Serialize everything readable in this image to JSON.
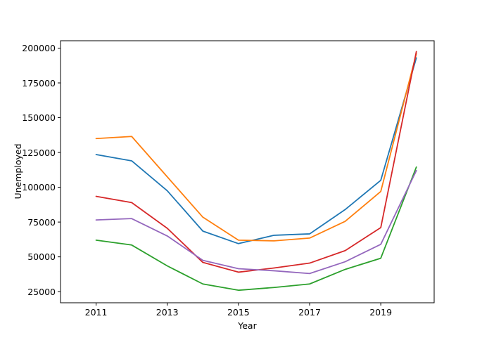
{
  "chart_data": {
    "type": "line",
    "title": "",
    "xlabel": "Year",
    "ylabel": "Unemployed",
    "x": [
      2011,
      2012,
      2013,
      2014,
      2015,
      2016,
      2017,
      2018,
      2019,
      2020
    ],
    "series": [
      {
        "name": "series-blue",
        "color": "#1f77b4",
        "values": [
          123500,
          119000,
          97500,
          68500,
          59500,
          65500,
          66500,
          84000,
          105000,
          193000
        ]
      },
      {
        "name": "series-orange",
        "color": "#ff7f0e",
        "values": [
          135000,
          136500,
          107500,
          78500,
          62000,
          61500,
          63500,
          75500,
          97000,
          196000
        ]
      },
      {
        "name": "series-green",
        "color": "#2ca02c",
        "values": [
          62000,
          58500,
          43500,
          30500,
          26000,
          28000,
          30500,
          41000,
          49000,
          114500
        ]
      },
      {
        "name": "series-red",
        "color": "#d62728",
        "values": [
          93500,
          89000,
          70500,
          46000,
          39000,
          42000,
          45500,
          54500,
          71000,
          197500
        ]
      },
      {
        "name": "series-purple",
        "color": "#9467bd",
        "values": [
          76500,
          77500,
          65000,
          47500,
          41500,
          40000,
          38000,
          46500,
          59000,
          112000
        ]
      }
    ],
    "x_ticks": [
      2011,
      2013,
      2015,
      2017,
      2019
    ],
    "y_ticks": [
      25000,
      50000,
      75000,
      100000,
      125000,
      150000,
      175000,
      200000
    ],
    "xlim": [
      2010.0,
      2020.5
    ],
    "ylim": [
      17000,
      205300
    ],
    "grid": false,
    "legend": "none",
    "spine_color": "#000000",
    "background_color": "#ffffff"
  }
}
